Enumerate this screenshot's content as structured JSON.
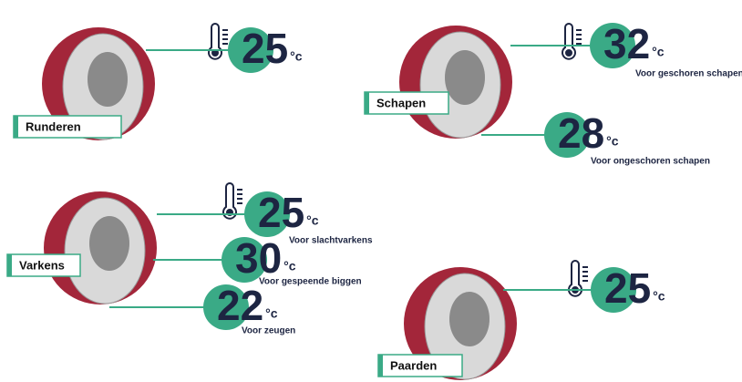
{
  "unit": "°c",
  "animals": [
    {
      "label": "Runderen",
      "readings": [
        {
          "value": 25
        }
      ]
    },
    {
      "label": "Schapen",
      "readings": [
        {
          "value": 32,
          "note": "Voor geschoren schapen"
        },
        {
          "value": 28,
          "note": "Voor ongeschoren schapen"
        }
      ]
    },
    {
      "label": "Varkens",
      "readings": [
        {
          "value": 25,
          "note": "Voor slachtvarkens"
        },
        {
          "value": 30,
          "note": "Voor gespeende biggen"
        },
        {
          "value": 22,
          "note": "Voor zeugen"
        }
      ]
    },
    {
      "label": "Paarden",
      "readings": [
        {
          "value": 25
        }
      ]
    }
  ]
}
